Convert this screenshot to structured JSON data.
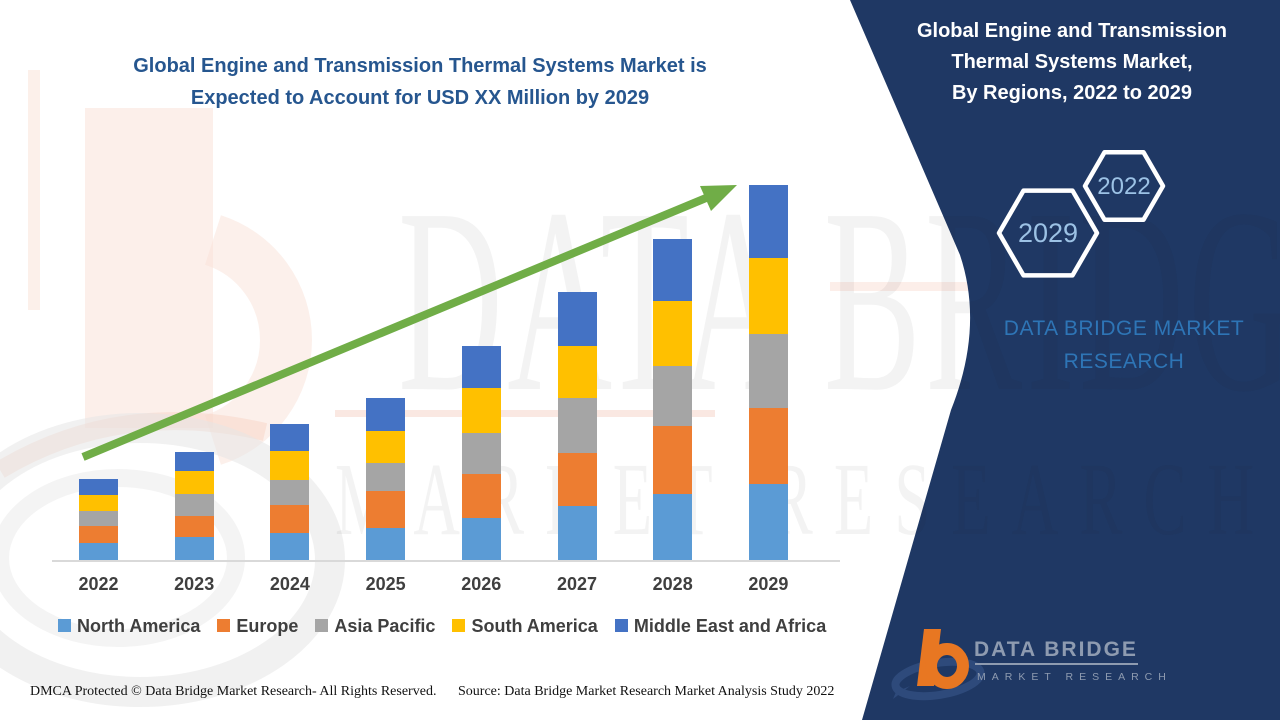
{
  "main_title": {
    "line1": "Global Engine and Transmission Thermal Systems Market is",
    "line2": "Expected to Account for USD XX Million by 2029"
  },
  "panel": {
    "title_line1": "Global Engine and Transmission",
    "title_line2": "Thermal Systems Market,",
    "title_line3": "By Regions, 2022 to 2029",
    "hexagon_start_year": "2029",
    "hexagon_end_year": "2022",
    "brand_line1": "DATA BRIDGE MARKET",
    "brand_line2": "RESEARCH",
    "colors": {
      "panel_bg": "#1F3864",
      "brand_text": "#2E75B6",
      "hexagon_year_text": "#9CC2E5"
    }
  },
  "logo": {
    "name": "DATA BRIDGE",
    "subtitle": "MARKET RESEARCH"
  },
  "watermark": {
    "row1": "DATA BRIDGE",
    "row2": "MARKET RESEARCH"
  },
  "footer": {
    "dmca": "DMCA Protected © Data Bridge Market Research- All Rights Reserved.",
    "source": "Source: Data Bridge Market Research Market Analysis Study 2022"
  },
  "chart_data": {
    "type": "bar",
    "stacked": true,
    "title": "Global Engine and Transmission Thermal Systems Market, By Regions, 2022 to 2029",
    "xlabel": "",
    "ylabel": "",
    "unit": "relative market size (actual values shown as USD XX Million)",
    "grid": false,
    "legend_position": "bottom",
    "categories": [
      "2022",
      "2023",
      "2024",
      "2025",
      "2026",
      "2027",
      "2028",
      "2029"
    ],
    "series": [
      {
        "name": "North America",
        "color": "#5B9BD5",
        "values": [
          17,
          23,
          27,
          32,
          42,
          54,
          66,
          76
        ]
      },
      {
        "name": "Europe",
        "color": "#ED7D31",
        "values": [
          17,
          21,
          28,
          37,
          44,
          53,
          68,
          76
        ]
      },
      {
        "name": "Asia Pacific",
        "color": "#A5A5A5",
        "values": [
          15,
          22,
          25,
          28,
          41,
          55,
          60,
          74
        ]
      },
      {
        "name": "South America",
        "color": "#FFC000",
        "values": [
          16,
          23,
          29,
          32,
          45,
          52,
          65,
          76
        ]
      },
      {
        "name": "Middle East and Africa",
        "color": "#4472C4",
        "values": [
          16,
          19,
          27,
          33,
          42,
          54,
          62,
          73
        ]
      }
    ],
    "totals_estimated": [
      81,
      108,
      136,
      162,
      214,
      268,
      321,
      375
    ],
    "trend_arrow": {
      "color": "#70AD47",
      "direction": "up-right"
    }
  }
}
